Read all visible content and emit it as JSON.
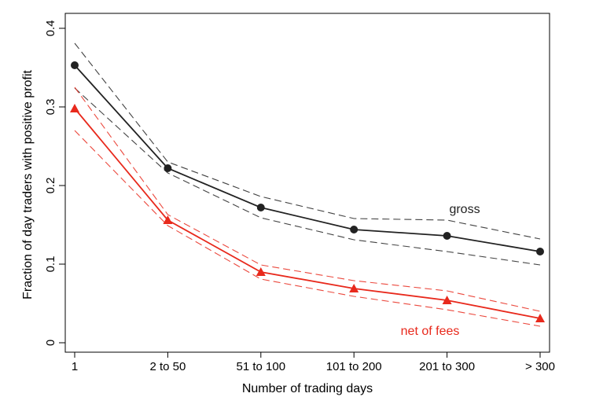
{
  "chart_data": {
    "type": "line",
    "title": "",
    "xlabel": "Number of trading days",
    "ylabel": "Fraction of day traders with positive profit",
    "categories": [
      "1",
      "2 to 50",
      "51 to 100",
      "101 to 200",
      "201 to 300",
      "> 300"
    ],
    "ylim": [
      0,
      0.4
    ],
    "yticks": [
      0,
      0.1,
      0.2,
      0.3,
      0.4
    ],
    "ytick_labels": [
      "0",
      "0.1",
      "0.2",
      "0.3",
      "0.4"
    ],
    "grid": false,
    "series": [
      {
        "name": "gross",
        "label": "gross",
        "marker": "circle",
        "color": "#222222",
        "values": [
          0.353,
          0.222,
          0.172,
          0.144,
          0.136,
          0.116
        ],
        "ci_upper": [
          0.381,
          0.23,
          0.186,
          0.158,
          0.156,
          0.132
        ],
        "ci_lower": [
          0.324,
          0.216,
          0.159,
          0.131,
          0.116,
          0.099
        ]
      },
      {
        "name": "net of fees",
        "label": "net of fees",
        "marker": "triangle",
        "color": "#e8291c",
        "values": [
          0.298,
          0.156,
          0.09,
          0.069,
          0.054,
          0.031
        ],
        "ci_upper": [
          0.325,
          0.163,
          0.099,
          0.079,
          0.066,
          0.04
        ],
        "ci_lower": [
          0.27,
          0.149,
          0.081,
          0.059,
          0.042,
          0.021
        ]
      }
    ]
  }
}
